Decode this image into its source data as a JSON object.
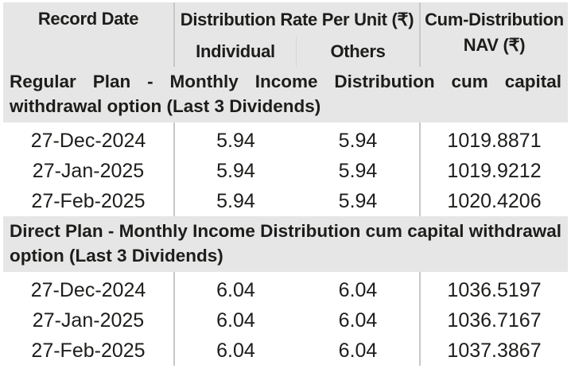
{
  "table": {
    "headers": {
      "record_date": "Record Date",
      "distribution_rate": "Distribution Rate Per Unit (₹)",
      "individual": "Individual",
      "others": "Others",
      "cum_nav_line1": "Cum-Distribution",
      "cum_nav_line2": "NAV (₹)"
    },
    "sections": [
      {
        "title": "Regular Plan - Monthly Income Distribution cum capital withdrawal option (Last 3 Dividends)",
        "rows": [
          {
            "date": "27-Dec-2024",
            "individual": "5.94",
            "others": "5.94",
            "nav": "1019.8871"
          },
          {
            "date": "27-Jan-2025",
            "individual": "5.94",
            "others": "5.94",
            "nav": "1019.9212"
          },
          {
            "date": "27-Feb-2025",
            "individual": "5.94",
            "others": "5.94",
            "nav": "1020.4206"
          }
        ]
      },
      {
        "title": "Direct Plan - Monthly Income Distribution cum capital withdrawal option (Last 3 Dividends)",
        "rows": [
          {
            "date": "27-Dec-2024",
            "individual": "6.04",
            "others": "6.04",
            "nav": "1036.5197"
          },
          {
            "date": "27-Jan-2025",
            "individual": "6.04",
            "others": "6.04",
            "nav": "1036.7167"
          },
          {
            "date": "27-Feb-2025",
            "individual": "6.04",
            "others": "6.04",
            "nav": "1037.3867"
          }
        ]
      }
    ]
  }
}
